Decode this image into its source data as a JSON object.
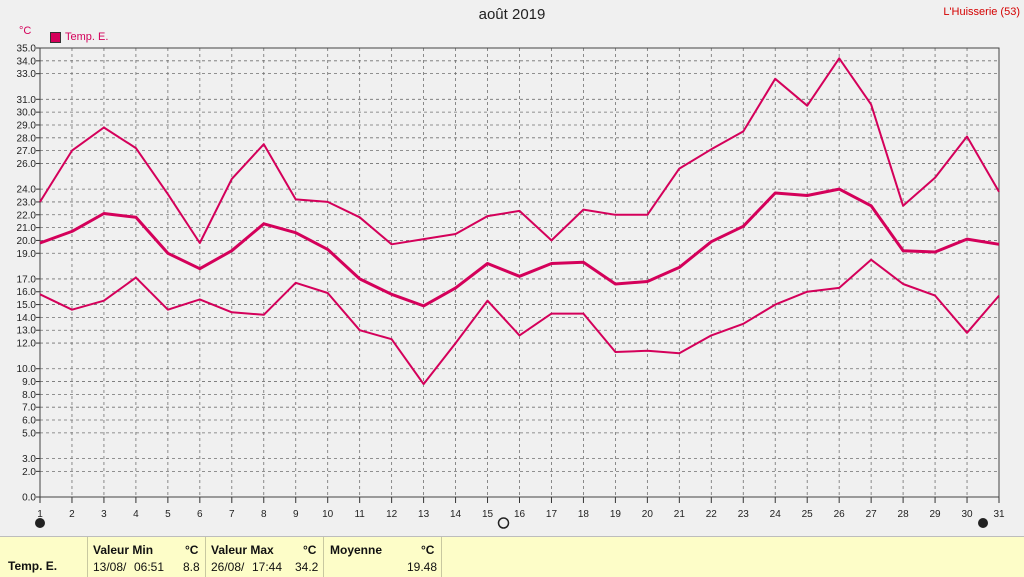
{
  "header": {
    "title": "août 2019",
    "station": "L'Huisserie (53)",
    "unit": "°C"
  },
  "legend": {
    "label": "Temp. E.",
    "color": "#d4005a"
  },
  "chart_data": {
    "type": "line",
    "title": "août 2019",
    "ylabel": "°C",
    "ylim": [
      0,
      35
    ],
    "grid": true,
    "legend_position": "top-left",
    "y_ticks": [
      0.0,
      2.0,
      3.0,
      5.0,
      6.0,
      7.0,
      8.0,
      9.0,
      10.0,
      12.0,
      13.0,
      14.0,
      15.0,
      16.0,
      17.0,
      19.0,
      20.0,
      21.0,
      22.0,
      23.0,
      24.0,
      26.0,
      27.0,
      28.0,
      29.0,
      30.0,
      31.0,
      33.0,
      34.0,
      35.0
    ],
    "x": [
      1,
      2,
      3,
      4,
      5,
      6,
      7,
      8,
      9,
      10,
      11,
      12,
      13,
      14,
      15,
      16,
      17,
      18,
      19,
      20,
      21,
      22,
      23,
      24,
      25,
      26,
      27,
      28,
      29,
      30,
      31
    ],
    "series": [
      {
        "values": [
          23.0,
          27.0,
          28.8,
          27.2,
          23.6,
          19.8,
          24.8,
          27.5,
          23.2,
          23.0,
          21.8,
          19.7,
          20.1,
          20.5,
          21.9,
          22.3,
          20.0,
          22.4,
          22.0,
          22.0,
          25.6,
          27.1,
          28.5,
          32.6,
          30.5,
          34.2,
          30.6,
          22.7,
          24.9,
          28.1,
          23.8
        ]
      },
      {
        "values": [
          19.8,
          20.7,
          22.1,
          21.8,
          19.0,
          17.8,
          19.2,
          21.3,
          20.6,
          19.3,
          17.0,
          15.8,
          14.9,
          16.3,
          18.2,
          17.2,
          18.2,
          18.3,
          16.6,
          16.8,
          17.9,
          19.9,
          21.1,
          23.7,
          23.5,
          24.0,
          22.7,
          19.2,
          19.1,
          20.1,
          19.7
        ]
      },
      {
        "values": [
          15.8,
          14.6,
          15.3,
          17.1,
          14.6,
          15.4,
          14.4,
          14.2,
          16.7,
          15.9,
          13.0,
          12.3,
          8.8,
          12.0,
          15.3,
          12.6,
          14.3,
          14.3,
          11.3,
          11.4,
          11.2,
          12.6,
          13.5,
          15.0,
          16.0,
          16.3,
          18.5,
          16.6,
          15.7,
          12.8,
          15.7
        ]
      }
    ]
  },
  "footer": {
    "series_label": "Temp. E.",
    "min_label": "Valeur Min",
    "min_unit": "°C",
    "min_date": "13/08/",
    "min_time": "06:51",
    "min_value": "8.8",
    "max_label": "Valeur Max",
    "max_unit": "°C",
    "max_date": "26/08/",
    "max_time": "17:44",
    "max_value": "34.2",
    "avg_label": "Moyenne",
    "avg_unit": "°C",
    "avg_value": "19.48"
  }
}
